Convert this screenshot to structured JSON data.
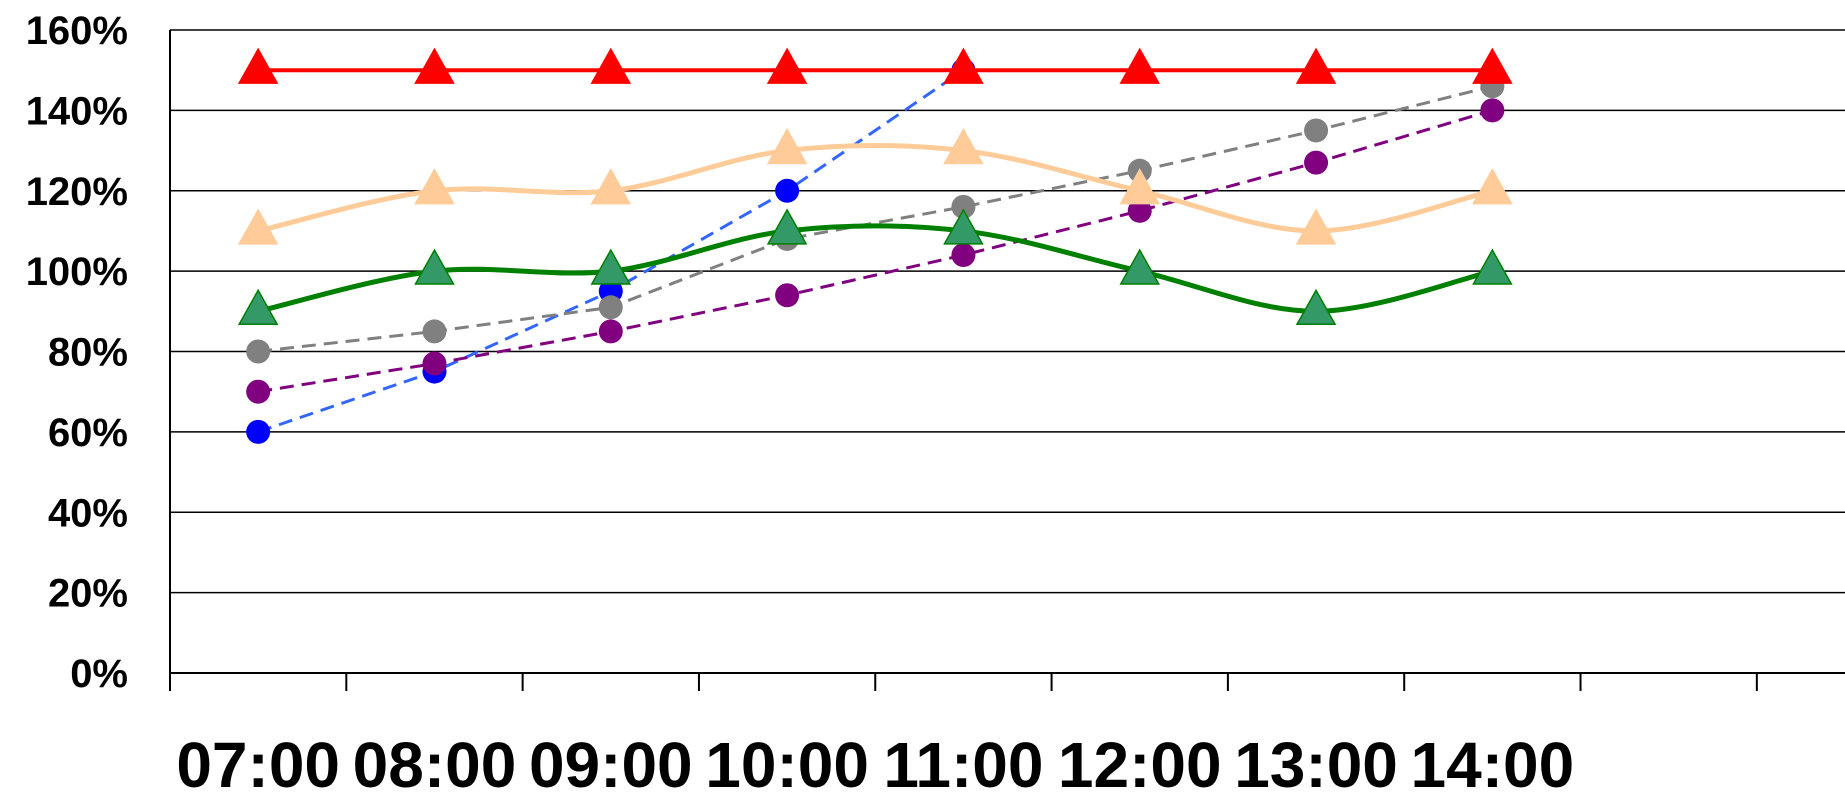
{
  "chart_data": {
    "type": "line",
    "title": "",
    "xlabel": "",
    "ylabel": "",
    "categories": [
      "07:00",
      "08:00",
      "09:00",
      "10:00",
      "11:00",
      "12:00",
      "13:00",
      "14:00"
    ],
    "ylim": [
      0,
      160
    ],
    "yticks": [
      0,
      20,
      40,
      60,
      80,
      100,
      120,
      140,
      160
    ],
    "ytick_labels": [
      "0%",
      "20%",
      "40%",
      "60%",
      "80%",
      "100%",
      "120%",
      "140%",
      "160%"
    ],
    "grid": true,
    "legend": "none",
    "series": [
      {
        "color": "#ff0000",
        "style": "solid",
        "marker": "triangle",
        "values": [
          150,
          150,
          150,
          150,
          150,
          150,
          150,
          150
        ]
      },
      {
        "color": "#ffcc99",
        "style": "solid-smooth",
        "marker": "triangle",
        "values": [
          110,
          120,
          120,
          130,
          130,
          120,
          110,
          120
        ]
      },
      {
        "color": "#008000",
        "marker_color": "#339966",
        "style": "solid-smooth",
        "marker": "triangle",
        "values": [
          90,
          100,
          100,
          110,
          110,
          100,
          90,
          100
        ]
      },
      {
        "color": "#3366ff",
        "marker_color": "#0000ff",
        "style": "dashed",
        "marker": "circle",
        "values": [
          60,
          75,
          95,
          120,
          150,
          null,
          null,
          null
        ]
      },
      {
        "color": "#808080",
        "style": "dashed",
        "marker": "circle",
        "values": [
          80,
          85,
          91,
          108,
          116,
          125,
          135,
          146
        ]
      },
      {
        "color": "#800080",
        "style": "dashed",
        "marker": "circle",
        "values": [
          70,
          77,
          85,
          94,
          104,
          115,
          127,
          140
        ]
      }
    ]
  }
}
